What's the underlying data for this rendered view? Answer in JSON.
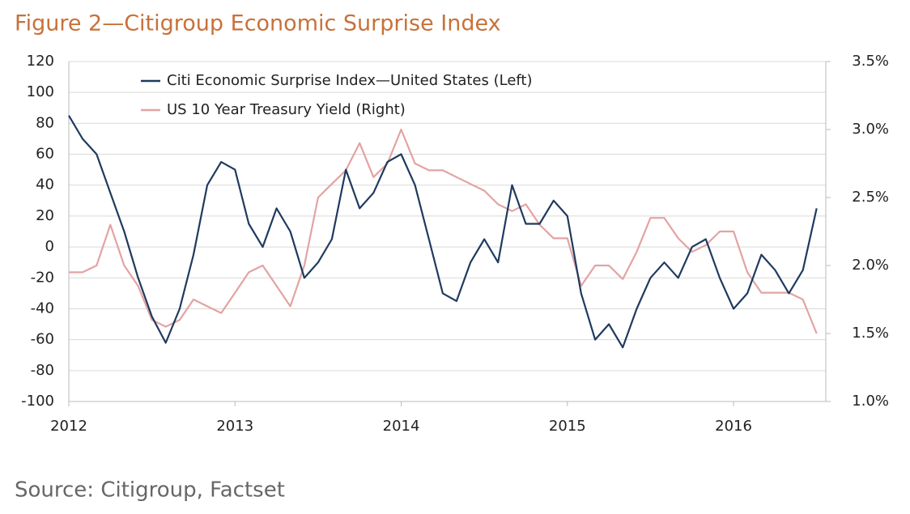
{
  "chart_data": {
    "type": "line",
    "title": "Figure 2—Citigroup Economic Surprise Index",
    "source": "Source: Citigroup, Factset",
    "x": [
      2012,
      2012.083,
      2012.167,
      2012.25,
      2012.333,
      2012.417,
      2012.5,
      2012.583,
      2012.667,
      2012.75,
      2012.833,
      2012.917,
      2013,
      2013.083,
      2013.167,
      2013.25,
      2013.333,
      2013.417,
      2013.5,
      2013.583,
      2013.667,
      2013.75,
      2013.833,
      2013.917,
      2014,
      2014.083,
      2014.167,
      2014.25,
      2014.333,
      2014.417,
      2014.5,
      2014.583,
      2014.667,
      2014.75,
      2014.833,
      2014.917,
      2015,
      2015.083,
      2015.167,
      2015.25,
      2015.333,
      2015.417,
      2015.5,
      2015.583,
      2015.667,
      2015.75,
      2015.833,
      2015.917,
      2016,
      2016.083,
      2016.167,
      2016.25,
      2016.333,
      2016.417,
      2016.5
    ],
    "series": [
      {
        "name": "Citi Economic Surprise Index—United States (Left)",
        "color": "#1f3a5f",
        "axis": "y",
        "values": [
          85,
          70,
          60,
          35,
          10,
          -20,
          -45,
          -62,
          -40,
          -5,
          40,
          55,
          50,
          15,
          0,
          25,
          10,
          -20,
          -10,
          5,
          50,
          25,
          35,
          55,
          60,
          40,
          5,
          -30,
          -35,
          -10,
          5,
          -10,
          40,
          15,
          15,
          30,
          20,
          -30,
          -60,
          -50,
          -65,
          -40,
          -20,
          -10,
          -20,
          0,
          5,
          -20,
          -40,
          -30,
          -5,
          -15,
          -30,
          -15,
          25
        ]
      },
      {
        "name": "US 10 Year Treasury Yield (Right)",
        "color": "#e3a3a3",
        "axis": "y2",
        "values": [
          1.95,
          1.95,
          2.0,
          2.3,
          2.0,
          1.85,
          1.6,
          1.55,
          1.6,
          1.75,
          1.7,
          1.65,
          1.8,
          1.95,
          2.0,
          1.85,
          1.7,
          2.0,
          2.5,
          2.6,
          2.7,
          2.9,
          2.65,
          2.75,
          3.0,
          2.75,
          2.7,
          2.7,
          2.65,
          2.6,
          2.55,
          2.45,
          2.4,
          2.45,
          2.3,
          2.2,
          2.2,
          1.85,
          2.0,
          2.0,
          1.9,
          2.1,
          2.35,
          2.35,
          2.2,
          2.1,
          2.15,
          2.25,
          2.25,
          1.95,
          1.8,
          1.8,
          1.8,
          1.75,
          1.5
        ]
      }
    ],
    "xlim": [
      2012,
      2016.555
    ],
    "xticks": [
      2012,
      2013,
      2014,
      2015,
      2016
    ],
    "ylim": [
      -100,
      120
    ],
    "yticks": [
      -100,
      -80,
      -60,
      -40,
      -20,
      0,
      20,
      40,
      60,
      80,
      100,
      120
    ],
    "y2lim": [
      1.0,
      3.5
    ],
    "y2ticks": [
      {
        "value": 1.0,
        "label": "1.0%"
      },
      {
        "value": 1.5,
        "label": "1.5%"
      },
      {
        "value": 2.0,
        "label": "2.0%"
      },
      {
        "value": 2.5,
        "label": "2.5%"
      },
      {
        "value": 3.0,
        "label": "3.0%"
      },
      {
        "value": 3.5,
        "label": "3.5%"
      }
    ],
    "grid": true,
    "legend": "top"
  }
}
